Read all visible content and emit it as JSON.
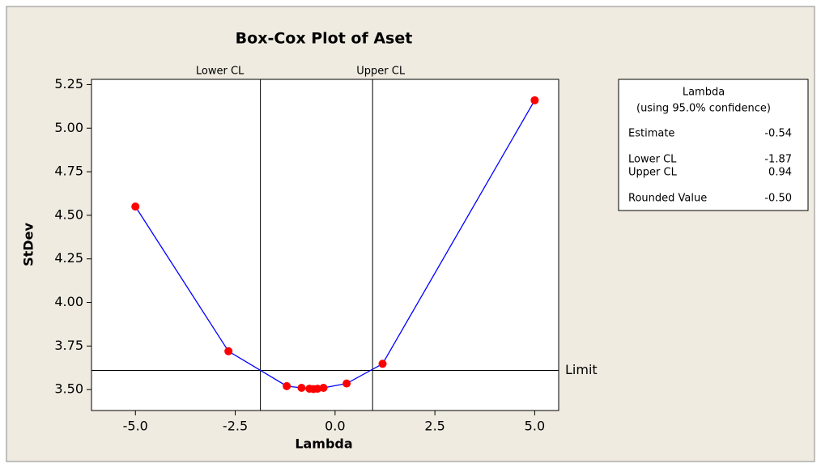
{
  "chart_data": {
    "type": "line",
    "title": "Box-Cox Plot of Aset",
    "x_label": "Lambda",
    "y_label": "StDev",
    "x": [
      -5.0,
      -2.67,
      -1.21,
      -0.84,
      -0.64,
      -0.54,
      -0.44,
      -0.29,
      0.29,
      1.19,
      5.0
    ],
    "values": [
      4.55,
      3.72,
      3.52,
      3.51,
      3.505,
      3.503,
      3.505,
      3.51,
      3.535,
      3.648,
      5.16
    ],
    "color": "#0000ff",
    "marker_color": "#ff0000",
    "xlim": [
      -6.1,
      5.6
    ],
    "ylim": [
      3.38,
      5.28
    ],
    "xticks": [
      {
        "value": -5,
        "label": "-5.0"
      },
      {
        "value": -2.5,
        "label": "-2.5"
      },
      {
        "value": 0,
        "label": "0.0"
      },
      {
        "value": 2.5,
        "label": "2.5"
      },
      {
        "value": 5,
        "label": "5.0"
      }
    ],
    "yticks": [
      {
        "value": 3.5,
        "label": "3.50"
      },
      {
        "value": 3.75,
        "label": "3.75"
      },
      {
        "value": 4,
        "label": "4.00"
      },
      {
        "value": 4.25,
        "label": "4.25"
      },
      {
        "value": 4.5,
        "label": "4.50"
      },
      {
        "value": 4.75,
        "label": "4.75"
      },
      {
        "value": 5,
        "label": "5.00"
      },
      {
        "value": 5.25,
        "label": "5.25"
      }
    ],
    "vlines": [
      {
        "label": "Lower CL",
        "value": -1.87
      },
      {
        "label": "Upper CL",
        "value": 0.94
      }
    ],
    "hlines": [
      {
        "label": "Limit",
        "value": 3.61
      }
    ],
    "info_box": {
      "title": "Lambda",
      "subtitle": "(using 95.0% confidence)",
      "rows": [
        [
          "Estimate",
          "-0.54"
        ],
        [
          "Lower CL",
          "-1.87"
        ],
        [
          "Upper CL",
          "0.94"
        ],
        [
          "Rounded Value",
          "-0.50"
        ]
      ]
    }
  }
}
